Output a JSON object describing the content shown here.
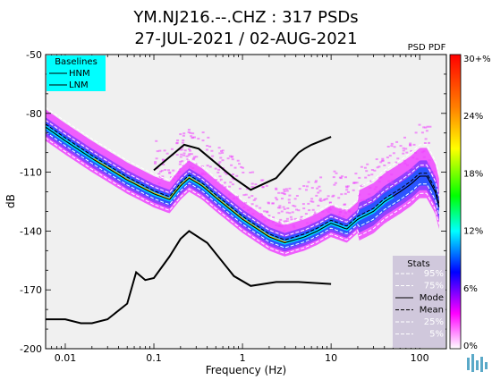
{
  "chart_data": {
    "type": "heatmap",
    "title_line1": "YM.NJ216.--.CHZ : 317 PSDs",
    "title_line2": "27-JUL-2021 / 02-AUG-2021",
    "xlabel": "Frequency (Hz)",
    "ylabel": "dB",
    "xscale": "log",
    "xlim": [
      0.006,
      200
    ],
    "ylim": [
      -200,
      -50
    ],
    "x_ticks": [
      {
        "value": 0.01,
        "label": "0.01"
      },
      {
        "value": 0.1,
        "label": "0.1"
      },
      {
        "value": 1,
        "label": "1"
      },
      {
        "value": 10,
        "label": "10"
      },
      {
        "value": 100,
        "label": "100"
      }
    ],
    "y_ticks": [
      {
        "value": -50,
        "label": "-50"
      },
      {
        "value": -80,
        "label": "-80"
      },
      {
        "value": -110,
        "label": "-110"
      },
      {
        "value": -140,
        "label": "-140"
      },
      {
        "value": -170,
        "label": "-170"
      },
      {
        "value": -200,
        "label": "-200"
      }
    ],
    "colorbar": {
      "title": "PSD PDF",
      "range": [
        0,
        30
      ],
      "ticks": [
        "30+%",
        "24%",
        "18%",
        "12%",
        "6%",
        "0%"
      ],
      "colors": [
        "#ff0000",
        "#ff8000",
        "#ffff00",
        "#00ff00",
        "#00ffff",
        "#0000ff",
        "#ff00ff",
        "#ffffff"
      ]
    },
    "baselines_legend": {
      "title": "Baselines",
      "items": [
        "HNM",
        "LNM"
      ],
      "background": "#00ffff"
    },
    "stats_legend": {
      "title": "Stats",
      "items": [
        {
          "label": "95%",
          "style": "dashed",
          "color": "#ffffff"
        },
        {
          "label": "75%",
          "style": "dashed",
          "color": "#ffffff"
        },
        {
          "label": "Mode",
          "style": "solid",
          "color": "#000000"
        },
        {
          "label": "Mean",
          "style": "dashed",
          "color": "#000000"
        },
        {
          "label": "25%",
          "style": "dashed",
          "color": "#ffffff"
        },
        {
          "label": "5%",
          "style": "dashed",
          "color": "#ffffff"
        }
      ],
      "background": "#d0c8dc"
    },
    "series": [
      {
        "name": "HNM",
        "x": [
          0.1,
          0.22,
          0.32,
          0.8,
          1.24,
          2.4,
          4.3,
          5,
          6,
          10
        ],
        "y": [
          -109,
          -96,
          -98,
          -113,
          -119,
          -113,
          -100,
          -98,
          -96,
          -92
        ]
      },
      {
        "name": "LNM",
        "x": [
          0.006,
          0.01,
          0.015,
          0.02,
          0.03,
          0.05,
          0.063,
          0.08,
          0.1,
          0.15,
          0.2,
          0.25,
          0.4,
          0.8,
          1.24,
          2.4,
          4.3,
          10
        ],
        "y": [
          -185,
          -185,
          -187,
          -187,
          -185,
          -177,
          -161,
          -165,
          -164,
          -153,
          -144,
          -140,
          -146,
          -163,
          -168,
          -166,
          -166,
          -167
        ]
      },
      {
        "name": "Mode",
        "x": [
          0.006,
          0.01,
          0.02,
          0.05,
          0.1,
          0.15,
          0.2,
          0.25,
          0.35,
          0.5,
          1,
          2,
          3,
          5,
          7,
          10,
          15,
          20,
          30,
          40,
          60,
          80,
          100,
          120,
          150,
          170
        ],
        "y": [
          -87,
          -94,
          -103,
          -114,
          -121,
          -124,
          -117,
          -113,
          -117,
          -123,
          -134,
          -143,
          -146,
          -143,
          -140,
          -136,
          -139,
          -134,
          -130,
          -125,
          -120,
          -116,
          -112,
          -112,
          -120,
          -130
        ]
      }
    ]
  }
}
